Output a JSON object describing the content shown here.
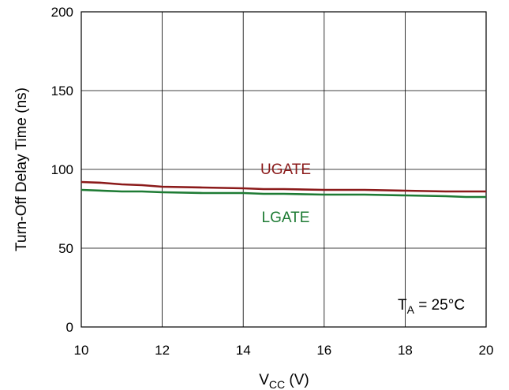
{
  "chart_data": {
    "type": "line",
    "xlabel": {
      "main": "V",
      "sub": "CC",
      "unit": " (V)"
    },
    "ylabel": "Turn-Off Delay Time (ns)",
    "xlim": [
      10,
      20
    ],
    "ylim": [
      0,
      200
    ],
    "xticks": [
      10,
      12,
      14,
      16,
      18,
      20
    ],
    "yticks": [
      0,
      50,
      100,
      150,
      200
    ],
    "grid": true,
    "series": [
      {
        "name": "UGATE",
        "color": "#8B1A1A",
        "x": [
          10,
          10.5,
          11,
          11.5,
          12,
          13,
          14,
          14.5,
          15,
          16,
          17,
          18,
          19,
          20
        ],
        "y": [
          92,
          91.5,
          90.5,
          90,
          89,
          88.5,
          88,
          87.5,
          87.5,
          87,
          87,
          86.5,
          86,
          86
        ]
      },
      {
        "name": "LGATE",
        "color": "#1E7B34",
        "x": [
          10,
          11,
          11.5,
          12,
          13,
          14,
          14.5,
          15,
          16,
          17,
          18,
          19,
          19.5,
          20
        ],
        "y": [
          87,
          86,
          86,
          85.5,
          85,
          85,
          84.5,
          84.5,
          84,
          84,
          83.5,
          83,
          82.5,
          82.5
        ]
      }
    ],
    "annotation": {
      "main": "T",
      "sub": "A",
      "rest": " = 25°C"
    }
  }
}
